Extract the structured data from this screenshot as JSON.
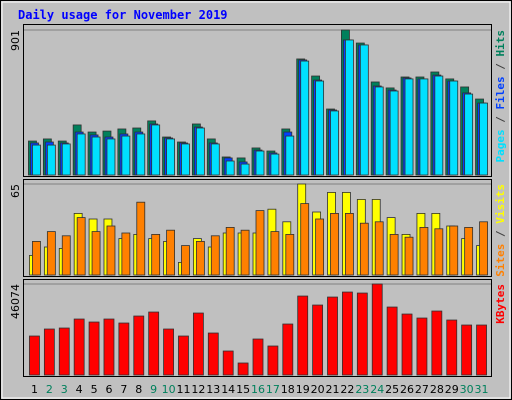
{
  "title": "Daily usage for November 2019",
  "legend_separator": " / ",
  "chart_data": [
    {
      "type": "bar",
      "ylim": [
        0,
        901
      ],
      "yticks": [
        901
      ],
      "series": [
        {
          "name": "Hits",
          "color": "#00805c",
          "values": [
            211,
            224,
            211,
            311,
            267,
            273,
            286,
            292,
            336,
            236,
            205,
            317,
            224,
            112,
            106,
            168,
            149,
            286,
            721,
            615,
            410,
            901,
            820,
            578,
            541,
            609,
            609,
            640,
            597,
            547,
            472
          ]
        },
        {
          "name": "Files",
          "color": "#0040ff",
          "values": [
            199,
            205,
            199,
            267,
            249,
            236,
            255,
            267,
            317,
            230,
            199,
            298,
            199,
            106,
            81,
            155,
            137,
            267,
            715,
            590,
            404,
            839,
            808,
            553,
            528,
            603,
            597,
            621,
            584,
            510,
            447
          ]
        },
        {
          "name": "Pages",
          "color": "#00e0ff",
          "values": [
            186,
            186,
            193,
            255,
            236,
            224,
            242,
            255,
            311,
            224,
            193,
            292,
            193,
            87,
            68,
            149,
            130,
            242,
            708,
            584,
            398,
            839,
            808,
            547,
            522,
            597,
            597,
            615,
            584,
            503,
            447
          ]
        }
      ]
    },
    {
      "type": "bar",
      "ylim": [
        0,
        65
      ],
      "yticks": [
        65
      ],
      "series": [
        {
          "name": "Visits",
          "color": "#ffff00",
          "values": [
            14,
            20,
            19,
            44,
            40,
            40,
            26,
            29,
            26,
            24,
            9,
            26,
            20,
            30,
            30,
            30,
            47,
            38,
            65,
            45,
            59,
            59,
            54,
            54,
            41,
            29,
            44,
            44,
            35,
            26,
            21
          ]
        },
        {
          "name": "Sites",
          "color": "#ff8000",
          "values": [
            24,
            31,
            28,
            41,
            31,
            35,
            30,
            52,
            29,
            32,
            21,
            24,
            28,
            34,
            32,
            46,
            31,
            29,
            51,
            40,
            44,
            44,
            37,
            38,
            29,
            27,
            34,
            33,
            35,
            34,
            38
          ]
        }
      ]
    },
    {
      "type": "bar",
      "ylim": [
        0,
        46074
      ],
      "yticks": [
        46074
      ],
      "categories": [
        "1",
        "2",
        "3",
        "4",
        "5",
        "6",
        "7",
        "8",
        "9",
        "10",
        "11",
        "12",
        "13",
        "14",
        "15",
        "16",
        "17",
        "18",
        "19",
        "20",
        "21",
        "22",
        "23",
        "24",
        "25",
        "26",
        "27",
        "28",
        "29",
        "30",
        "31"
      ],
      "category_colors": [
        "#000000",
        "#00805c",
        "#00805c",
        "#000000",
        "#000000",
        "#000000",
        "#000000",
        "#000000",
        "#00805c",
        "#00805c",
        "#000000",
        "#000000",
        "#000000",
        "#000000",
        "#000000",
        "#00805c",
        "#00805c",
        "#000000",
        "#000000",
        "#000000",
        "#000000",
        "#000000",
        "#00805c",
        "#00805c",
        "#000000",
        "#000000",
        "#000000",
        "#000000",
        "#000000",
        "#00805c",
        "#00805c"
      ],
      "series": [
        {
          "name": "KBytes",
          "color": "#ff0000",
          "values": [
            19734,
            23276,
            23782,
            28336,
            26818,
            28336,
            26312,
            29854,
            31878,
            23276,
            19734,
            31372,
            21252,
            12144,
            6072,
            18216,
            14674,
            25806,
            39974,
            35420,
            39468,
            41998,
            41492,
            46074,
            34408,
            30866,
            28842,
            32384,
            27830,
            25300,
            25300
          ]
        }
      ]
    }
  ]
}
